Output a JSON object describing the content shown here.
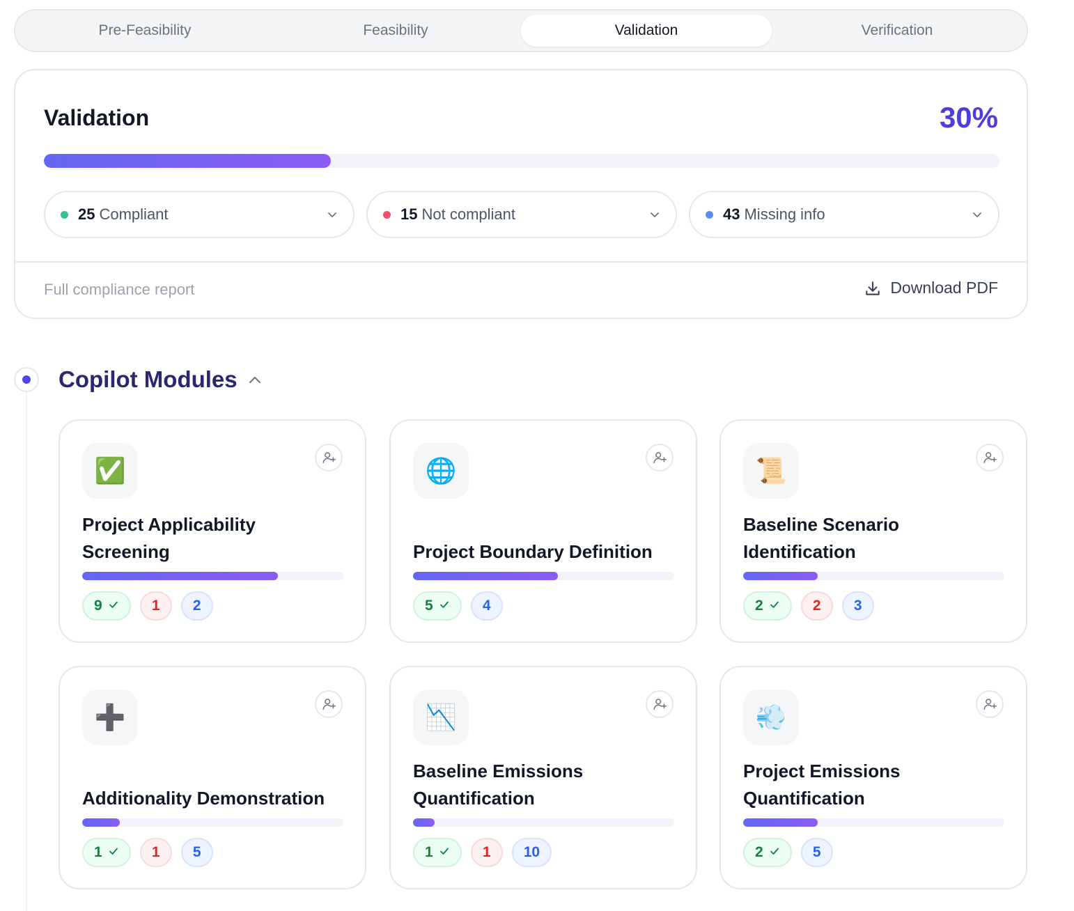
{
  "tabs": [
    {
      "label": "Pre-Feasibility",
      "active": false
    },
    {
      "label": "Feasibility",
      "active": false
    },
    {
      "label": "Validation",
      "active": true
    },
    {
      "label": "Verification",
      "active": false
    }
  ],
  "validation": {
    "title": "Validation",
    "percent_label": "30%",
    "progress": 0.3,
    "stats": [
      {
        "count": "25",
        "label": "Compliant",
        "color": "#34c38f"
      },
      {
        "count": "15",
        "label": "Not compliant",
        "color": "#f0506e"
      },
      {
        "count": "43",
        "label": "Missing info",
        "color": "#5b8def"
      }
    ],
    "report_label": "Full compliance report",
    "download_label": "Download PDF"
  },
  "section": {
    "title": "Copilot Modules"
  },
  "modules": [
    {
      "icon": "✅",
      "icon_name": "check-mark-icon",
      "title": "Project Applicability Screening",
      "progress": 0.75,
      "compliant": "9",
      "not_compliant": "1",
      "missing": "2"
    },
    {
      "icon": "🌐",
      "icon_name": "globe-icon",
      "title": "Project Boundary Definition",
      "progress": 0.555,
      "compliant": "5",
      "not_compliant": null,
      "missing": "4"
    },
    {
      "icon": "📜",
      "icon_name": "scroll-icon",
      "title": "Baseline Scenario Identification",
      "progress": 0.285,
      "compliant": "2",
      "not_compliant": "2",
      "missing": "3"
    },
    {
      "icon": "➕",
      "icon_name": "plus-icon",
      "title": "Additionality Demonstration",
      "progress": 0.143,
      "compliant": "1",
      "not_compliant": "1",
      "missing": "5"
    },
    {
      "icon": "📉",
      "icon_name": "chart-decreasing-icon",
      "title": "Baseline Emissions Quantification",
      "progress": 0.083,
      "compliant": "1",
      "not_compliant": "1",
      "missing": "10"
    },
    {
      "icon": "💨",
      "icon_name": "dash-cloud-icon",
      "title": "Project Emissions Quantification",
      "progress": 0.285,
      "compliant": "2",
      "not_compliant": null,
      "missing": "5"
    }
  ]
}
